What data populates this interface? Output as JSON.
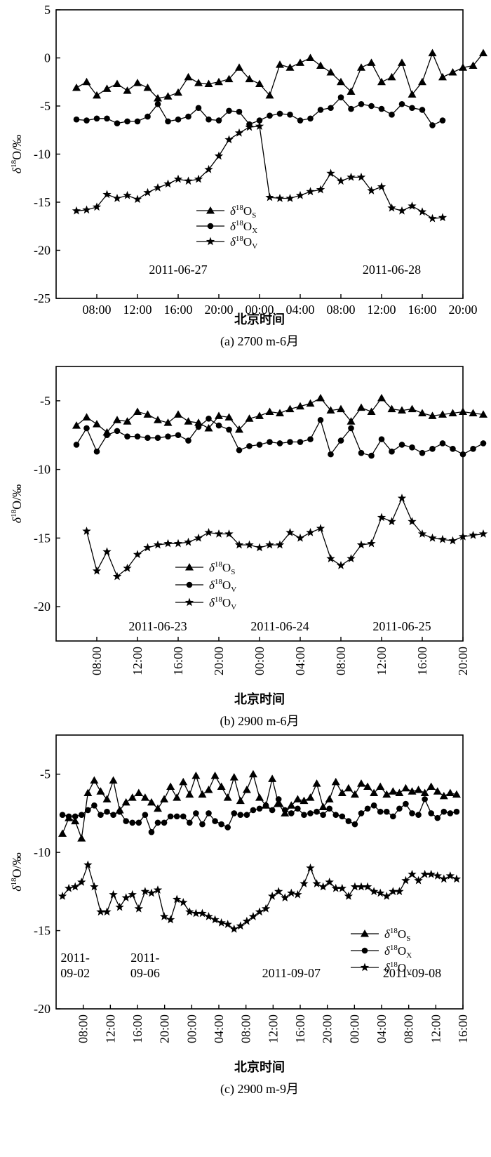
{
  "chart_data": [
    {
      "type": "line",
      "caption": "(a) 2700 m-6月",
      "xlabel": "北京时间",
      "ylabel": "δ18O/‰",
      "ylim": [
        -25,
        5
      ],
      "yticks": [
        5,
        0,
        -5,
        -10,
        -15,
        -20,
        -25
      ],
      "xticks": [
        "08:00",
        "12:00",
        "16:00",
        "20:00",
        "00:00",
        "04:00",
        "08:00",
        "12:00",
        "16:00",
        "20:00"
      ],
      "x_range_hours": [
        0,
        40
      ],
      "grid": false,
      "legend_position": "center",
      "dates": [
        {
          "label": "2011-06-27",
          "x_hours": 12
        },
        {
          "label": "2011-06-28",
          "x_hours": 33
        }
      ],
      "series": [
        {
          "name": "δ18OS",
          "sub": "S",
          "marker": "triangle",
          "x": [
            2,
            3,
            4,
            5,
            6,
            7,
            8,
            9,
            10,
            11,
            12,
            13,
            14,
            15,
            16,
            17,
            18,
            19,
            20,
            21,
            22,
            23,
            24,
            25,
            26,
            27,
            28,
            29,
            30,
            31,
            32,
            33,
            34,
            35,
            36,
            37,
            38,
            39,
            40,
            41,
            42
          ],
          "values": [
            -3.1,
            -2.5,
            -3.9,
            -3.2,
            -2.7,
            -3.4,
            -2.6,
            -3.1,
            -4.2,
            -4,
            -3.6,
            -2,
            -2.6,
            -2.7,
            -2.5,
            -2.2,
            -1,
            -2.2,
            -2.7,
            -3.9,
            -0.7,
            -1,
            -0.5,
            0,
            -0.8,
            -1.5,
            -2.5,
            -3.5,
            -1,
            -0.5,
            -2.5,
            -2,
            -0.5,
            -3.8,
            -2.5,
            0.5,
            -2,
            -1.5,
            -1,
            -0.8,
            0.5
          ]
        },
        {
          "name": "δ18OX",
          "sub": "X",
          "marker": "circle",
          "x": [
            2,
            3,
            4,
            5,
            6,
            7,
            8,
            9,
            10,
            11,
            12,
            13,
            14,
            15,
            16,
            17,
            18,
            19,
            20,
            21,
            22,
            23,
            24,
            25,
            26,
            27,
            28,
            29,
            30,
            31,
            32,
            33,
            34,
            35,
            36,
            37,
            38
          ],
          "values": [
            -6.4,
            -6.5,
            -6.3,
            -6.3,
            -6.8,
            -6.6,
            -6.6,
            -6.1,
            -4.8,
            -6.6,
            -6.4,
            -6.1,
            -5.2,
            -6.4,
            -6.5,
            -5.5,
            -5.6,
            -6.9,
            -6.5,
            -6,
            -5.8,
            -5.9,
            -6.5,
            -6.3,
            -5.4,
            -5.2,
            -4.1,
            -5.3,
            -4.8,
            -5,
            -5.3,
            -5.9,
            -4.8,
            -5.2,
            -5.4,
            -7,
            -6.5
          ]
        },
        {
          "name": "δ18OV",
          "sub": "V",
          "marker": "star",
          "x": [
            2,
            3,
            4,
            5,
            6,
            7,
            8,
            9,
            10,
            11,
            12,
            13,
            14,
            15,
            16,
            17,
            18,
            19,
            20,
            21,
            22,
            23,
            24,
            25,
            26,
            27,
            28,
            29,
            30,
            31,
            32,
            33,
            34,
            35,
            36,
            37,
            38
          ],
          "values": [
            -15.9,
            -15.8,
            -15.5,
            -14.2,
            -14.6,
            -14.3,
            -14.7,
            -14,
            -13.5,
            -13.1,
            -12.6,
            -12.8,
            -12.6,
            -11.6,
            -10.2,
            -8.5,
            -7.8,
            -7.2,
            -7.1,
            -14.5,
            -14.6,
            -14.6,
            -14.3,
            -13.9,
            -13.7,
            -12,
            -12.8,
            -12.4,
            -12.4,
            -13.8,
            -13.4,
            -15.6,
            -15.9,
            -15.4,
            -16,
            -16.7,
            -16.6
          ]
        }
      ]
    },
    {
      "type": "line",
      "caption": "(b) 2900 m-6月",
      "xlabel": "北京时间",
      "ylabel": "δ18O/‰",
      "ylim": [
        -22.5,
        -2.5
      ],
      "yticks": [
        -5,
        -10,
        -15,
        -20
      ],
      "xticks": [
        "08:00",
        "12:00",
        "16:00",
        "20:00",
        "00:00",
        "04:00",
        "08:00",
        "12:00",
        "16:00",
        "20:00"
      ],
      "x_range_hours": [
        0,
        40
      ],
      "grid": false,
      "legend_position": "bottom-left",
      "dates": [
        {
          "label": "2011-06-23",
          "x_hours": 10
        },
        {
          "label": "2011-06-24",
          "x_hours": 22
        },
        {
          "label": "2011-06-25",
          "x_hours": 34
        }
      ],
      "series": [
        {
          "name": "δ18OS",
          "sub": "S",
          "marker": "triangle",
          "x": [
            2,
            3,
            4,
            5,
            6,
            7,
            8,
            9,
            10,
            11,
            12,
            13,
            14,
            15,
            16,
            17,
            18,
            19,
            20,
            21,
            22,
            23,
            24,
            25,
            26,
            27,
            28,
            29,
            30,
            31,
            32,
            33,
            34,
            35,
            36,
            37,
            38,
            39,
            40,
            41,
            42
          ],
          "values": [
            -6.8,
            -6.2,
            -6.7,
            -7.3,
            -6.4,
            -6.5,
            -5.8,
            -6,
            -6.4,
            -6.6,
            -6,
            -6.5,
            -6.6,
            -7,
            -6.1,
            -6.2,
            -7.1,
            -6.3,
            -6.1,
            -5.8,
            -5.9,
            -5.6,
            -5.4,
            -5.2,
            -4.8,
            -5.7,
            -5.6,
            -6.5,
            -5.5,
            -5.8,
            -4.8,
            -5.6,
            -5.7,
            -5.6,
            -5.9,
            -6.1,
            -6,
            -5.9,
            -5.8,
            -5.9,
            -6
          ]
        },
        {
          "name": "δ18OV",
          "sub": "V",
          "marker": "circle",
          "x": [
            2,
            3,
            4,
            5,
            6,
            7,
            8,
            9,
            10,
            11,
            12,
            13,
            14,
            15,
            16,
            17,
            18,
            19,
            20,
            21,
            22,
            23,
            24,
            25,
            26,
            27,
            28,
            29,
            30,
            31,
            32,
            33,
            34,
            35,
            36,
            37,
            38,
            39,
            40,
            41,
            42
          ],
          "values": [
            -8.2,
            -7,
            -8.7,
            -7.5,
            -7.2,
            -7.6,
            -7.6,
            -7.7,
            -7.7,
            -7.6,
            -7.5,
            -7.9,
            -6.9,
            -6.3,
            -6.8,
            -7.1,
            -8.6,
            -8.3,
            -8.2,
            -8,
            -8.1,
            -8,
            -8,
            -7.8,
            -6.4,
            -8.9,
            -7.9,
            -7,
            -8.8,
            -9,
            -7.8,
            -8.7,
            -8.2,
            -8.4,
            -8.8,
            -8.5,
            -8.1,
            -8.5,
            -8.9,
            -8.5,
            -8.1
          ]
        },
        {
          "name": "δ18OV",
          "sub": "V",
          "marker": "star",
          "x": [
            3,
            4,
            5,
            6,
            7,
            8,
            9,
            10,
            11,
            12,
            13,
            14,
            15,
            16,
            17,
            18,
            19,
            20,
            21,
            22,
            23,
            24,
            25,
            26,
            27,
            28,
            29,
            30,
            31,
            32,
            33,
            34,
            35,
            36,
            37,
            38,
            39,
            40,
            41,
            42
          ],
          "values": [
            -14.5,
            -17.4,
            -16,
            -17.8,
            -17.2,
            -16.2,
            -15.7,
            -15.5,
            -15.4,
            -15.4,
            -15.3,
            -15,
            -14.6,
            -14.7,
            -14.7,
            -15.5,
            -15.5,
            -15.7,
            -15.5,
            -15.5,
            -14.6,
            -15,
            -14.6,
            -14.3,
            -16.5,
            -17,
            -16.5,
            -15.5,
            -15.4,
            -13.5,
            -13.8,
            -12.1,
            -13.8,
            -14.7,
            -15,
            -15.1,
            -15.2,
            -14.9,
            -14.8,
            -14.7
          ]
        }
      ]
    },
    {
      "type": "line",
      "caption": "(c) 2900 m-9月",
      "xlabel": "北京时间",
      "ylabel": "δ18O/‰",
      "ylim": [
        -20,
        -2.5
      ],
      "yticks": [
        -5,
        -10,
        -15,
        -20
      ],
      "xticks": [
        "08:00",
        "12:00",
        "16:00",
        "20:00",
        "00:00",
        "04:00",
        "08:00",
        "12:00",
        "16:00",
        "20:00",
        "00:00",
        "04:00",
        "08:00",
        "12:00",
        "16:00"
      ],
      "x_range_hours": [
        0,
        64
      ],
      "grid": false,
      "legend_position": "bottom-right",
      "dates": [
        {
          "label": "2011-\n09-02",
          "x_hours": 3
        },
        {
          "label": "2011-\n09-06",
          "x_hours": 14
        },
        {
          "label": "2011-09-07",
          "x_hours": 37
        },
        {
          "label": "2011-09-08",
          "x_hours": 56
        }
      ],
      "series": [
        {
          "name": "δ18OS",
          "sub": "S",
          "marker": "triangle",
          "x": [
            1,
            2,
            3,
            4,
            5,
            6,
            7,
            8,
            9,
            10,
            11,
            12,
            13,
            14,
            15,
            16,
            17,
            18,
            19,
            20,
            21,
            22,
            23,
            24,
            25,
            26,
            27,
            28,
            29,
            30,
            31,
            32,
            33,
            34,
            35,
            36,
            37,
            38,
            39,
            40,
            41,
            42,
            43,
            44,
            45,
            46,
            47,
            48,
            49,
            50,
            51,
            52,
            53,
            54,
            55,
            56,
            57,
            58,
            59,
            60,
            61,
            62,
            63
          ],
          "values": [
            -8.8,
            -7.8,
            -8,
            -9.1,
            -6.2,
            -5.4,
            -6.1,
            -6.6,
            -5.4,
            -7.3,
            -6.8,
            -6.5,
            -6.2,
            -6.5,
            -6.8,
            -7.2,
            -6.6,
            -5.8,
            -6.5,
            -5.5,
            -6.3,
            -5.1,
            -6.3,
            -6,
            -5.1,
            -5.8,
            -6.5,
            -5.2,
            -6.7,
            -6,
            -5,
            -6.5,
            -7,
            -5.3,
            -6.9,
            -7.5,
            -7,
            -6.6,
            -6.7,
            -6.5,
            -5.6,
            -7.1,
            -6.6,
            -5.5,
            -6.2,
            -5.9,
            -6.3,
            -5.6,
            -5.8,
            -6.2,
            -5.8,
            -6.3,
            -6.1,
            -6.2,
            -5.9,
            -6.1,
            -6,
            -6.2,
            -5.8,
            -6.1,
            -6.4,
            -6.2,
            -6.3
          ]
        },
        {
          "name": "δ18OX",
          "sub": "X",
          "marker": "circle",
          "x": [
            1,
            2,
            3,
            4,
            5,
            6,
            7,
            8,
            9,
            10,
            11,
            12,
            13,
            14,
            15,
            16,
            17,
            18,
            19,
            20,
            21,
            22,
            23,
            24,
            25,
            26,
            27,
            28,
            29,
            30,
            31,
            32,
            33,
            34,
            35,
            36,
            37,
            38,
            39,
            40,
            41,
            42,
            43,
            44,
            45,
            46,
            47,
            48,
            49,
            50,
            51,
            52,
            53,
            54,
            55,
            56,
            57,
            58,
            59,
            60,
            61,
            62,
            63
          ],
          "values": [
            -7.6,
            -7.7,
            -7.7,
            -7.6,
            -7.3,
            -7,
            -7.6,
            -7.4,
            -7.6,
            -7.4,
            -8,
            -8.1,
            -8.1,
            -7.6,
            -8.7,
            -8.1,
            -8.1,
            -7.7,
            -7.7,
            -7.7,
            -8.1,
            -7.5,
            -8.2,
            -7.5,
            -8,
            -8.2,
            -8.4,
            -7.5,
            -7.6,
            -7.6,
            -7.3,
            -7.2,
            -7,
            -7.3,
            -6.6,
            -7.3,
            -7.5,
            -7.2,
            -7.6,
            -7.5,
            -7.4,
            -7.6,
            -7.2,
            -7.6,
            -7.7,
            -8,
            -8.2,
            -7.5,
            -7.2,
            -7,
            -7.4,
            -7.4,
            -7.7,
            -7.2,
            -6.9,
            -7.5,
            -7.6,
            -6.6,
            -7.5,
            -7.8,
            -7.4,
            -7.5,
            -7.4
          ]
        },
        {
          "name": "δ18OV",
          "sub": "V",
          "marker": "star",
          "x": [
            1,
            2,
            3,
            4,
            5,
            6,
            7,
            8,
            9,
            10,
            11,
            12,
            13,
            14,
            15,
            16,
            17,
            18,
            19,
            20,
            21,
            22,
            23,
            24,
            25,
            26,
            27,
            28,
            29,
            30,
            31,
            32,
            33,
            34,
            35,
            36,
            37,
            38,
            39,
            40,
            41,
            42,
            43,
            44,
            45,
            46,
            47,
            48,
            49,
            50,
            51,
            52,
            53,
            54,
            55,
            56,
            57,
            58,
            59,
            60,
            61,
            62,
            63
          ],
          "values": [
            -12.8,
            -12.3,
            -12.2,
            -11.9,
            -10.8,
            -12.2,
            -13.8,
            -13.8,
            -12.7,
            -13.5,
            -12.9,
            -12.7,
            -13.6,
            -12.5,
            -12.6,
            -12.4,
            -14.1,
            -14.3,
            -13,
            -13.2,
            -13.8,
            -13.9,
            -13.9,
            -14.1,
            -14.3,
            -14.5,
            -14.6,
            -14.9,
            -14.7,
            -14.4,
            -14.1,
            -13.8,
            -13.6,
            -12.8,
            -12.5,
            -12.9,
            -12.6,
            -12.7,
            -12,
            -11,
            -12,
            -12.2,
            -11.9,
            -12.3,
            -12.3,
            -12.8,
            -12.2,
            -12.2,
            -12.2,
            -12.5,
            -12.6,
            -12.8,
            -12.5,
            -12.5,
            -11.8,
            -11.4,
            -11.8,
            -11.4,
            -11.4,
            -11.5,
            -11.7,
            -11.5,
            -11.7
          ]
        }
      ]
    }
  ]
}
